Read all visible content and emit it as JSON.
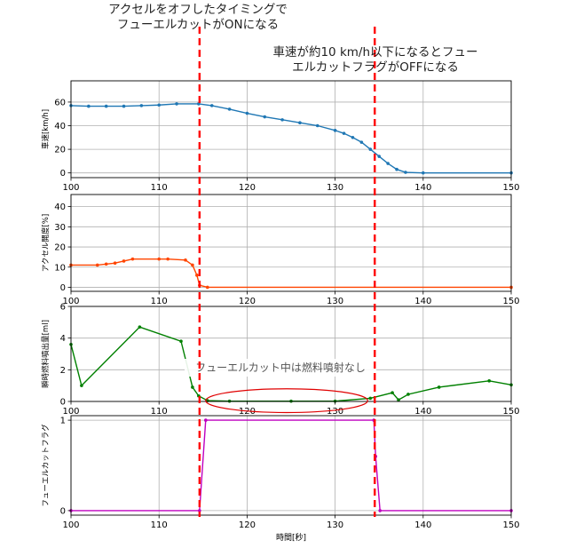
{
  "annotations": {
    "fuelcut_on": [
      "アクセルをオフしたタイミングで",
      "フューエルカットがONになる"
    ],
    "fuelcut_off": [
      "車速が約10 km/h以下になるとフュー",
      "エルカットフラグがOFFになる"
    ],
    "no_injection": "フューエルカット中は燃料噴射なし"
  },
  "colors": {
    "speed": "#1f77b4",
    "accel": "#ff4500",
    "fuel": "#008000",
    "flag": "#bf00bf",
    "marker_line": "#ff0000",
    "ellipse": "#e00000"
  },
  "chart_data": [
    {
      "type": "line",
      "id": "speed",
      "ylabel": "車速[km/h]",
      "xlim": [
        100,
        150
      ],
      "ylim": [
        -4,
        78
      ],
      "xticks": [
        100,
        110,
        120,
        130,
        140,
        150
      ],
      "yticks": [
        0,
        20,
        40,
        60
      ],
      "grid": true,
      "markers": true,
      "x": [
        100,
        102,
        104,
        106,
        108,
        110,
        112,
        114.5,
        116,
        118,
        120,
        122,
        124,
        126,
        128,
        130,
        131,
        132,
        133,
        134,
        135,
        136,
        137,
        138,
        140,
        150
      ],
      "y": [
        57,
        56.5,
        56.5,
        56.5,
        57,
        57.5,
        58.5,
        58.5,
        57,
        54,
        50.5,
        47.5,
        45,
        42.5,
        40,
        36,
        33.5,
        30,
        26,
        20,
        14,
        8,
        3,
        0.5,
        0,
        0
      ]
    },
    {
      "type": "line",
      "id": "accel",
      "ylabel": "アクセル開度[%]",
      "xlim": [
        100,
        150
      ],
      "ylim": [
        -2,
        46
      ],
      "xticks": [
        100,
        110,
        120,
        130,
        140,
        150
      ],
      "yticks": [
        0,
        10,
        20,
        30,
        40
      ],
      "grid": true,
      "markers": true,
      "x": [
        100,
        103,
        104,
        105,
        106,
        107,
        110,
        111,
        113,
        113.8,
        114.3,
        114.6,
        115.5,
        150
      ],
      "y": [
        11,
        11,
        11.5,
        12,
        13,
        14,
        14,
        14,
        13.5,
        11,
        6,
        1,
        0,
        0
      ]
    },
    {
      "type": "line",
      "id": "fuel",
      "ylabel": "瞬時燃料噴出量[ml]",
      "xlim": [
        100,
        150
      ],
      "ylim": [
        0,
        6
      ],
      "xticks": [
        100,
        110,
        120,
        130,
        140,
        150
      ],
      "yticks": [
        0,
        2,
        4,
        6
      ],
      "grid": true,
      "markers": true,
      "x": [
        100,
        101.2,
        107.8,
        112.5,
        113.8,
        114.5,
        115.5,
        118,
        125,
        130,
        134,
        136.5,
        137.2,
        138.3,
        141.8,
        147.5,
        150
      ],
      "y": [
        3.6,
        1.0,
        4.7,
        3.8,
        0.9,
        0.35,
        0.05,
        0.02,
        0.02,
        0.02,
        0.2,
        0.55,
        0.1,
        0.45,
        0.9,
        1.3,
        1.05
      ]
    },
    {
      "type": "line",
      "id": "flag",
      "ylabel": "フューエルカットフラグ",
      "xlabel": "時間[秒]",
      "xlim": [
        100,
        150
      ],
      "ylim": [
        -0.05,
        1.05
      ],
      "xticks": [
        100,
        110,
        120,
        130,
        140,
        150
      ],
      "yticks": [
        0,
        1
      ],
      "grid": true,
      "markers": true,
      "x": [
        100,
        114.6,
        115.3,
        134.4,
        134.6,
        135.1,
        150
      ],
      "y": [
        0,
        0,
        1,
        1,
        0.6,
        0,
        0
      ]
    }
  ],
  "vlines": [
    114.6,
    134.5
  ],
  "ellipse": {
    "cx": 124.5,
    "cy": 0.05,
    "rx_units": 9.2,
    "ry_units": 0.75
  }
}
